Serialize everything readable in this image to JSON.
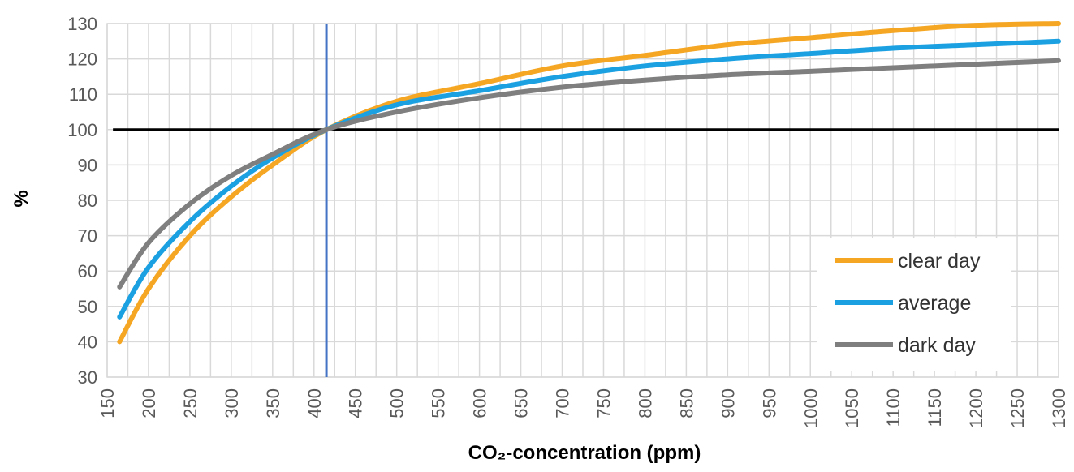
{
  "chart_data": {
    "type": "line",
    "title": "",
    "xlabel": "CO₂-concentration (ppm)",
    "ylabel": "%",
    "xlim": [
      150,
      1300
    ],
    "ylim": [
      30,
      130
    ],
    "x_ticks": [
      150,
      200,
      250,
      300,
      350,
      400,
      450,
      500,
      550,
      600,
      650,
      700,
      750,
      800,
      850,
      900,
      950,
      1000,
      1050,
      1100,
      1150,
      1200,
      1250,
      1300
    ],
    "x_tick_labels": [
      "150",
      "200",
      "250",
      "300",
      "350",
      "400",
      "450",
      "500",
      "550",
      "600",
      "650",
      "700",
      "750",
      "800",
      "850",
      "900",
      "950",
      "1000",
      "1050",
      "1100",
      "1150",
      "1200",
      "1250",
      "1300"
    ],
    "y_ticks": [
      30,
      40,
      50,
      60,
      70,
      80,
      90,
      100,
      110,
      120,
      130
    ],
    "y_tick_labels": [
      "30",
      "40",
      "50",
      "60",
      "70",
      "80",
      "90",
      "100",
      "110",
      "120",
      "130"
    ],
    "grid": true,
    "legend_position": "right",
    "reference_lines": {
      "horizontal": {
        "y": 100,
        "color": "#000000"
      },
      "vertical": {
        "x": 415,
        "color": "#4472C4"
      }
    },
    "series": [
      {
        "name": "clear day",
        "color": "#F5A623",
        "x": [
          165,
          200,
          250,
          300,
          350,
          415,
          500,
          600,
          700,
          800,
          900,
          1000,
          1100,
          1200,
          1300
        ],
        "y": [
          40,
          55,
          70,
          81,
          90,
          100,
          108,
          113,
          118,
          121,
          124,
          126,
          128,
          129.5,
          130
        ]
      },
      {
        "name": "average",
        "color": "#1BA1E2",
        "x": [
          165,
          200,
          250,
          300,
          350,
          415,
          500,
          600,
          700,
          800,
          900,
          1000,
          1100,
          1200,
          1300
        ],
        "y": [
          47,
          61,
          74,
          84,
          92,
          100,
          107,
          111,
          115,
          118,
          120,
          121.5,
          123,
          124,
          125
        ]
      },
      {
        "name": "dark day",
        "color": "#7F7F7F",
        "x": [
          165,
          200,
          250,
          300,
          350,
          415,
          500,
          600,
          700,
          800,
          900,
          1000,
          1100,
          1200,
          1300
        ],
        "y": [
          55.5,
          68,
          79,
          87,
          93,
          100,
          105,
          109,
          112,
          114,
          115.5,
          116.5,
          117.5,
          118.5,
          119.5
        ]
      }
    ]
  }
}
